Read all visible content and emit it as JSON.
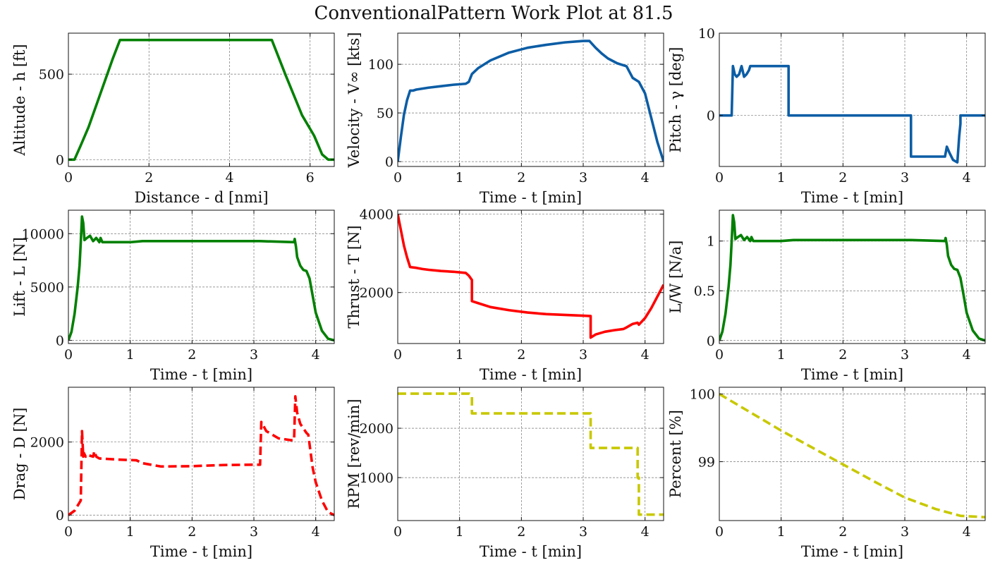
{
  "figure": {
    "title": "ConventionalPattern Work Plot at 81.5"
  },
  "colors": {
    "green": "#008000",
    "blue": "#0C5DA5",
    "red": "#FF0000",
    "yellow": "#C8C800"
  },
  "chart_data": [
    {
      "id": "altitude",
      "type": "line",
      "color": "green",
      "dash": false,
      "xlabel": "Distance - d [nmi]",
      "ylabel": "Altitude - h [ft]",
      "xlim": [
        0,
        6.6
      ],
      "ylim": [
        -40,
        740
      ],
      "xticks": [
        0,
        2,
        4,
        6
      ],
      "yticks": [
        0,
        500
      ],
      "x": [
        0,
        0.15,
        0.3,
        0.5,
        0.8,
        1.1,
        1.28,
        2,
        3,
        4,
        5.05,
        5.4,
        5.8,
        6.1,
        6.3,
        6.45,
        6.6
      ],
      "y": [
        0,
        0,
        80,
        190,
        390,
        590,
        700,
        700,
        700,
        700,
        700,
        490,
        260,
        140,
        30,
        0,
        0
      ]
    },
    {
      "id": "velocity",
      "type": "line",
      "color": "blue",
      "dash": false,
      "xlabel": "Time - t [min]",
      "ylabel": "Velocity - V∞ [kts]",
      "xlim": [
        0,
        4.3
      ],
      "ylim": [
        -5,
        132
      ],
      "xticks": [
        0,
        1,
        2,
        3,
        4
      ],
      "yticks": [
        0,
        50,
        100
      ],
      "x": [
        0,
        0.05,
        0.1,
        0.15,
        0.2,
        0.25,
        0.3,
        0.4,
        0.5,
        0.7,
        0.9,
        1.1,
        1.15,
        1.2,
        1.3,
        1.5,
        1.8,
        2.1,
        2.4,
        2.7,
        3.0,
        3.1,
        3.2,
        3.3,
        3.4,
        3.55,
        3.7,
        3.75,
        3.8,
        3.9,
        4.0,
        4.1,
        4.2,
        4.3
      ],
      "y": [
        0,
        25,
        48,
        63,
        73,
        73,
        74,
        75,
        76,
        77.5,
        79,
        80,
        82,
        90,
        96,
        104,
        112,
        117,
        120,
        122.5,
        124,
        124,
        117,
        111,
        106,
        101,
        98,
        92,
        86,
        82,
        70,
        45,
        20,
        0
      ]
    },
    {
      "id": "pitch",
      "type": "line",
      "color": "blue",
      "dash": false,
      "xlabel": "Time - t [min]",
      "ylabel": "Pitch - γ [deg]",
      "xlim": [
        0,
        4.3
      ],
      "ylim": [
        -6.2,
        10
      ],
      "xticks": [
        0,
        1,
        2,
        3,
        4
      ],
      "yticks": [
        0,
        10
      ],
      "x": [
        0,
        0.2,
        0.22,
        0.25,
        0.28,
        0.32,
        0.36,
        0.4,
        0.44,
        0.48,
        0.5,
        1.12,
        1.12,
        3.1,
        3.1,
        3.65,
        3.68,
        3.72,
        3.78,
        3.85,
        3.88,
        3.9,
        3.9,
        4.3
      ],
      "y": [
        0,
        0,
        6,
        5,
        4.7,
        5,
        6,
        4.7,
        5,
        5.5,
        6,
        6,
        0,
        0,
        -5,
        -5,
        -3.8,
        -4.5,
        -5.4,
        -5.7,
        -2.5,
        -1,
        0,
        0
      ]
    },
    {
      "id": "lift",
      "type": "line",
      "color": "green",
      "dash": false,
      "xlabel": "Time - t [min]",
      "ylabel": "Lift - L [N]",
      "xlim": [
        0,
        4.3
      ],
      "ylim": [
        -300,
        12200
      ],
      "xticks": [
        0,
        1,
        2,
        3,
        4
      ],
      "yticks": [
        0,
        5000,
        10000
      ],
      "x": [
        0,
        0.05,
        0.1,
        0.15,
        0.18,
        0.2,
        0.22,
        0.24,
        0.26,
        0.3,
        0.35,
        0.4,
        0.45,
        0.5,
        0.52,
        0.55,
        1.0,
        1.2,
        2.0,
        3.0,
        3.1,
        3.65,
        3.66,
        3.68,
        3.7,
        3.75,
        3.8,
        3.85,
        3.9,
        3.95,
        4.0,
        4.1,
        4.2,
        4.3
      ],
      "y": [
        0,
        800,
        2500,
        5000,
        7000,
        9200,
        11600,
        11000,
        9400,
        9600,
        9800,
        9300,
        9600,
        9200,
        9600,
        9200,
        9200,
        9300,
        9300,
        9300,
        9300,
        9200,
        9500,
        8800,
        7800,
        7000,
        6600,
        6500,
        5800,
        4200,
        2600,
        900,
        150,
        0
      ]
    },
    {
      "id": "thrust",
      "type": "line",
      "color": "red",
      "dash": false,
      "xlabel": "Time - t [min]",
      "ylabel": "Thrust - T [N]",
      "xlim": [
        0,
        4.3
      ],
      "ylim": [
        700,
        4100
      ],
      "xticks": [
        0,
        1,
        2,
        3,
        4
      ],
      "yticks": [
        2000,
        4000
      ],
      "x": [
        0,
        0.05,
        0.1,
        0.15,
        0.2,
        0.3,
        0.4,
        0.5,
        0.7,
        0.9,
        1.1,
        1.15,
        1.2,
        1.2,
        1.3,
        1.5,
        1.8,
        2.1,
        2.4,
        2.7,
        3.0,
        3.12,
        3.12,
        3.2,
        3.35,
        3.5,
        3.65,
        3.7,
        3.8,
        3.88,
        3.9,
        4.0,
        4.1,
        4.2,
        4.3
      ],
      "y": [
        4000,
        3600,
        3200,
        2900,
        2650,
        2630,
        2600,
        2580,
        2550,
        2530,
        2500,
        2430,
        2320,
        1780,
        1730,
        1630,
        1550,
        1490,
        1450,
        1430,
        1410,
        1400,
        850,
        930,
        1000,
        1040,
        1070,
        1110,
        1200,
        1230,
        1180,
        1350,
        1600,
        1900,
        2200
      ]
    },
    {
      "id": "lw",
      "type": "line",
      "color": "green",
      "dash": false,
      "xlabel": "Time - t [min]",
      "ylabel": "L/W [N/a]",
      "xlim": [
        0,
        4.3
      ],
      "ylim": [
        -0.03,
        1.31
      ],
      "xticks": [
        0,
        1,
        2,
        3,
        4
      ],
      "yticks": [
        0.0,
        0.5,
        1.0
      ],
      "x": [
        0,
        0.05,
        0.1,
        0.15,
        0.18,
        0.2,
        0.22,
        0.24,
        0.26,
        0.3,
        0.35,
        0.4,
        0.45,
        0.5,
        0.52,
        0.55,
        1.0,
        1.2,
        2.0,
        3.0,
        3.1,
        3.65,
        3.66,
        3.68,
        3.7,
        3.75,
        3.8,
        3.85,
        3.9,
        3.95,
        4.0,
        4.1,
        4.2,
        4.3
      ],
      "y": [
        0,
        0.09,
        0.27,
        0.54,
        0.76,
        1.0,
        1.26,
        1.19,
        1.02,
        1.04,
        1.06,
        1.01,
        1.04,
        1.0,
        1.04,
        1.0,
        1.0,
        1.01,
        1.01,
        1.01,
        1.01,
        1.0,
        1.03,
        0.96,
        0.85,
        0.76,
        0.72,
        0.71,
        0.63,
        0.46,
        0.28,
        0.1,
        0.02,
        0
      ]
    },
    {
      "id": "drag",
      "type": "line",
      "color": "red",
      "dash": true,
      "xlabel": "Time - t [min]",
      "ylabel": "Drag - D [N]",
      "xlim": [
        0,
        4.3
      ],
      "ylim": [
        -150,
        3500
      ],
      "xticks": [
        0,
        1,
        2,
        3,
        4
      ],
      "yticks": [
        0,
        2000
      ],
      "x": [
        0,
        0.1,
        0.2,
        0.22,
        0.24,
        0.25,
        0.28,
        0.3,
        0.4,
        0.42,
        0.45,
        0.5,
        0.8,
        1.1,
        1.2,
        1.5,
        2.0,
        2.5,
        3.0,
        3.1,
        3.12,
        3.2,
        3.4,
        3.6,
        3.65,
        3.67,
        3.7,
        3.75,
        3.85,
        3.88,
        3.95,
        4.0,
        4.1,
        4.2,
        4.3
      ],
      "y": [
        0,
        120,
        400,
        2300,
        1600,
        1700,
        1600,
        1650,
        1600,
        1750,
        1600,
        1550,
        1520,
        1500,
        1420,
        1330,
        1340,
        1370,
        1380,
        1380,
        2550,
        2300,
        2100,
        2050,
        2050,
        3250,
        2800,
        2500,
        2250,
        2200,
        1300,
        900,
        400,
        80,
        0
      ]
    },
    {
      "id": "rpm",
      "type": "line",
      "color": "yellow",
      "dash": true,
      "xlabel": "Time - t [min]",
      "ylabel": "RPM [rev/min]",
      "xlim": [
        0,
        4.3
      ],
      "ylim": [
        130,
        2830
      ],
      "xticks": [
        0,
        1,
        2,
        3,
        4
      ],
      "yticks": [
        1000,
        2000
      ],
      "x": [
        0,
        1.16,
        1.2,
        1.2,
        3.12,
        3.12,
        3.88,
        3.88,
        3.9,
        3.9,
        4.3
      ],
      "y": [
        2700,
        2700,
        2650,
        2300,
        2300,
        1600,
        1600,
        1000,
        1000,
        250,
        250
      ]
    },
    {
      "id": "percent",
      "type": "line",
      "color": "yellow",
      "dash": true,
      "xlabel": "Time - t [min]",
      "ylabel": "Percent [%]",
      "xlim": [
        0,
        4.3
      ],
      "ylim": [
        98.13,
        100.1
      ],
      "xticks": [
        0,
        1,
        2,
        3,
        4
      ],
      "yticks": [
        99,
        100
      ],
      "x": [
        0,
        0.5,
        1.0,
        1.5,
        2.0,
        2.5,
        3.0,
        3.5,
        3.9,
        4.3
      ],
      "y": [
        100,
        99.73,
        99.46,
        99.21,
        98.96,
        98.71,
        98.47,
        98.3,
        98.2,
        98.18
      ]
    }
  ]
}
